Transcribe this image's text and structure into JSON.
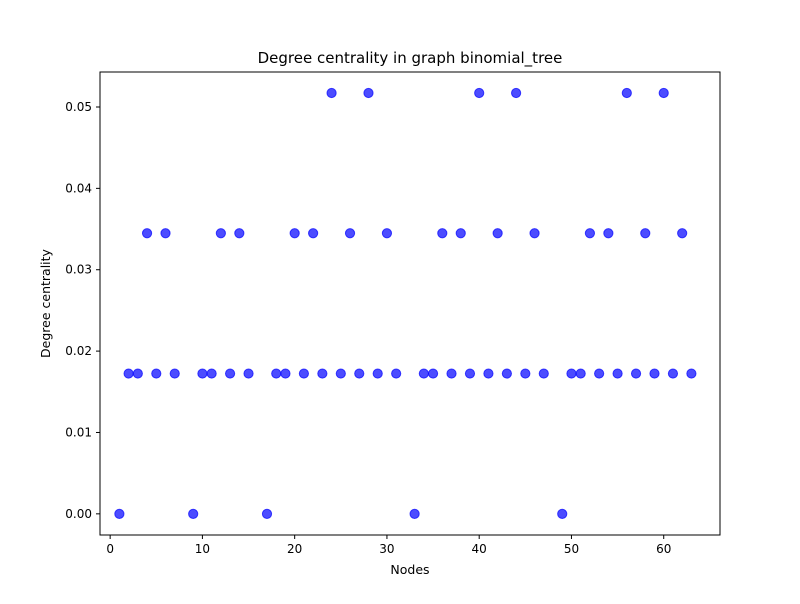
{
  "chart_data": {
    "type": "scatter",
    "title": "Degree centrality in graph binomial_tree",
    "xlabel": "Nodes",
    "ylabel": "Degree centrality",
    "xlim": [
      -1.1,
      66.1
    ],
    "ylim": [
      -0.0026,
      0.0543
    ],
    "xticks": [
      0,
      10,
      20,
      30,
      40,
      50,
      60
    ],
    "yticks": [
      0.0,
      0.01,
      0.02,
      0.03,
      0.04,
      0.05
    ],
    "ytick_labels": [
      "0.00",
      "0.01",
      "0.02",
      "0.03",
      "0.04",
      "0.05"
    ],
    "grid": false,
    "marker_color": "#0000ff",
    "marker_alpha": 0.7,
    "x": [
      1,
      2,
      3,
      4,
      5,
      6,
      7,
      9,
      10,
      11,
      12,
      13,
      14,
      15,
      17,
      18,
      19,
      20,
      21,
      22,
      23,
      24,
      25,
      26,
      27,
      28,
      29,
      30,
      31,
      33,
      34,
      35,
      36,
      37,
      38,
      39,
      40,
      41,
      42,
      43,
      44,
      45,
      46,
      47,
      49,
      50,
      51,
      52,
      53,
      54,
      55,
      56,
      57,
      58,
      59,
      60,
      61,
      62,
      63
    ],
    "y": [
      0.0,
      0.01724,
      0.01724,
      0.03448,
      0.01724,
      0.03448,
      0.01724,
      0.0,
      0.01724,
      0.01724,
      0.03448,
      0.01724,
      0.03448,
      0.01724,
      0.0,
      0.01724,
      0.01724,
      0.03448,
      0.01724,
      0.03448,
      0.01724,
      0.05172,
      0.01724,
      0.03448,
      0.01724,
      0.05172,
      0.01724,
      0.03448,
      0.01724,
      0.0,
      0.01724,
      0.01724,
      0.03448,
      0.01724,
      0.03448,
      0.01724,
      0.05172,
      0.01724,
      0.03448,
      0.01724,
      0.05172,
      0.01724,
      0.03448,
      0.01724,
      0.0,
      0.01724,
      0.01724,
      0.03448,
      0.01724,
      0.03448,
      0.01724,
      0.05172,
      0.01724,
      0.03448,
      0.01724,
      0.05172,
      0.01724,
      0.03448,
      0.01724
    ]
  }
}
